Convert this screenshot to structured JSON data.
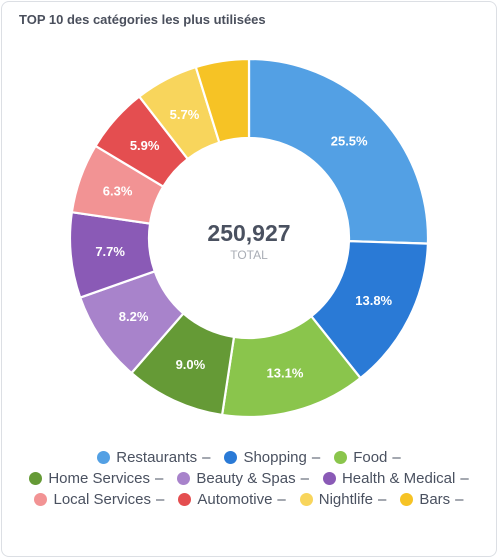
{
  "chart_data": {
    "type": "pie",
    "title": "TOP 10 des catégories les plus utilisées",
    "center_value": "250,927",
    "center_label": "TOTAL",
    "categories": [
      "Restaurants",
      "Shopping",
      "Food",
      "Home Services",
      "Beauty & Spas",
      "Health & Medical",
      "Local Services",
      "Automotive",
      "Nightlife",
      "Bars"
    ],
    "values": [
      25.5,
      13.8,
      13.1,
      9.0,
      8.2,
      7.7,
      6.3,
      5.9,
      5.7,
      4.8
    ],
    "labels": [
      "25.5%",
      "13.8%",
      "13.1%",
      "9.0%",
      "8.2%",
      "7.7%",
      "6.3%",
      "5.9%",
      "5.7%",
      ""
    ],
    "colors": [
      "#53a0e4",
      "#2a7ad6",
      "#8ac54c",
      "#659a36",
      "#a883cb",
      "#8a5ab6",
      "#f29394",
      "#e44e50",
      "#f8d55c",
      "#f6c325"
    ],
    "legend_suffix": "–",
    "legend_position": "bottom"
  }
}
